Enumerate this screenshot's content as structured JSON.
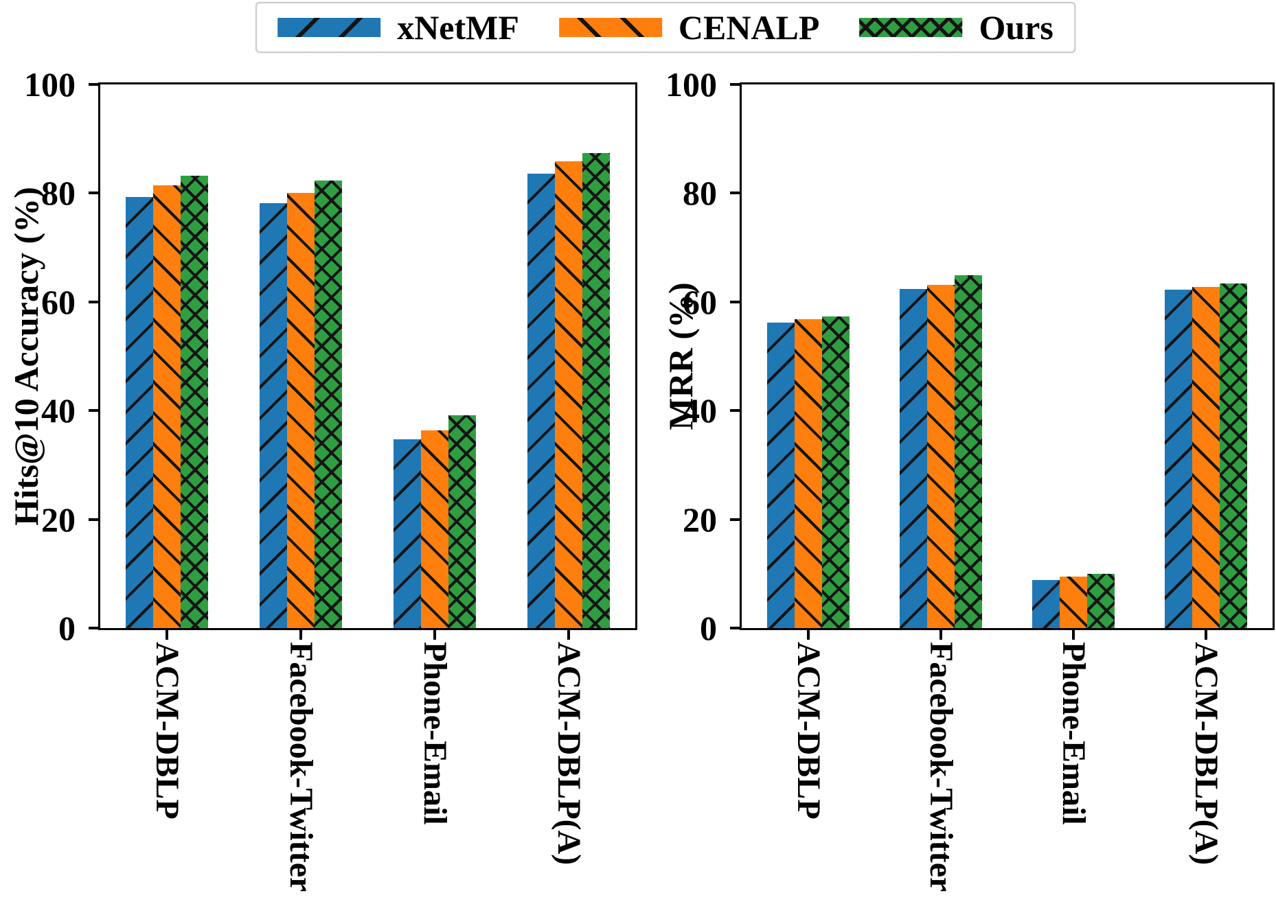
{
  "figure": {
    "background": "#ffffff",
    "axis_color": "#000000"
  },
  "legend": {
    "position": "top-center",
    "items": [
      {
        "label": "xNetMF",
        "color": "#1f77b4",
        "hatch": "/",
        "swatch": "blue-forward-slash-hatch"
      },
      {
        "label": "CENALP",
        "color": "#ff7f0e",
        "hatch": "\\",
        "swatch": "orange-back-slash-hatch"
      },
      {
        "label": "Ours",
        "color": "#2e9e41",
        "hatch": "x",
        "swatch": "green-cross-hatch"
      }
    ]
  },
  "chart_data": [
    {
      "type": "bar",
      "title": "",
      "ylabel": "Hits@10 Accuracy (%)",
      "xlabel": "",
      "ylim": [
        0,
        100
      ],
      "yticks": [
        0,
        20,
        40,
        60,
        80,
        100
      ],
      "grid": false,
      "categories": [
        "ACM-DBLP",
        "Facebook-Twitter",
        "Phone-Email",
        "ACM-DBLP(A)"
      ],
      "series": [
        {
          "name": "xNetMF",
          "values": [
            79.3,
            78.2,
            34.7,
            83.6
          ]
        },
        {
          "name": "CENALP",
          "values": [
            81.4,
            80.1,
            36.4,
            85.9
          ]
        },
        {
          "name": "Ours",
          "values": [
            83.2,
            82.3,
            39.1,
            87.4
          ]
        }
      ]
    },
    {
      "type": "bar",
      "title": "",
      "ylabel": "MRR (%)",
      "xlabel": "",
      "ylim": [
        0,
        100
      ],
      "yticks": [
        0,
        20,
        40,
        60,
        80,
        100
      ],
      "grid": false,
      "categories": [
        "ACM-DBLP",
        "Facebook-Twitter",
        "Phone-Email",
        "ACM-DBLP(A)"
      ],
      "series": [
        {
          "name": "xNetMF",
          "values": [
            56.2,
            62.4,
            8.8,
            62.2
          ]
        },
        {
          "name": "CENALP",
          "values": [
            56.8,
            63.1,
            9.5,
            62.8
          ]
        },
        {
          "name": "Ours",
          "values": [
            57.3,
            64.9,
            10.0,
            63.4
          ]
        }
      ]
    }
  ]
}
